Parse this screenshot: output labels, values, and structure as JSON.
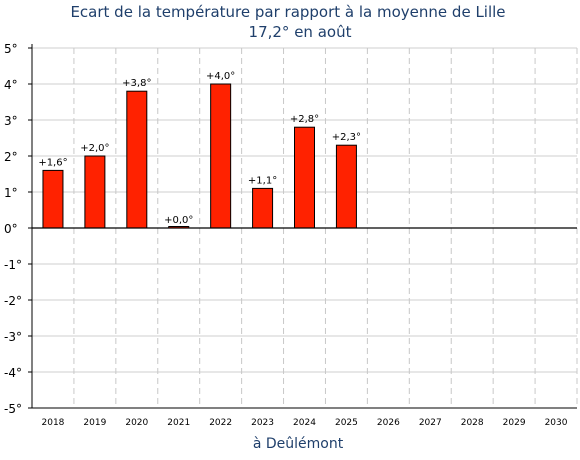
{
  "chart_data": {
    "type": "bar",
    "title": "Ecart de la température par rapport à la moyenne de Lille",
    "subtitle": "17,2° en août",
    "xlabel": "à Deûlémont",
    "ylabel": "",
    "ylim": [
      -5,
      5
    ],
    "yticks": [
      "-5°",
      "-4°",
      "-3°",
      "-2°",
      "-1°",
      "0°",
      "1°",
      "2°",
      "3°",
      "4°",
      "5°"
    ],
    "ytick_values": [
      -5,
      -4,
      -3,
      -2,
      -1,
      0,
      1,
      2,
      3,
      4,
      5
    ],
    "categories": [
      "2018",
      "2019",
      "2020",
      "2021",
      "2022",
      "2023",
      "2024",
      "2025",
      "2026",
      "2027",
      "2028",
      "2029",
      "2030"
    ],
    "values": [
      1.6,
      2.0,
      3.8,
      0.0,
      4.0,
      1.1,
      2.8,
      2.3,
      null,
      null,
      null,
      null,
      null
    ],
    "data_labels": [
      "+1,6°",
      "+2,0°",
      "+3,8°",
      "+0,0°",
      "+4,0°",
      "+1,1°",
      "+2,8°",
      "+2,3°",
      "",
      "",
      "",
      "",
      ""
    ],
    "bar_color": "#ff2200",
    "grid": true
  }
}
